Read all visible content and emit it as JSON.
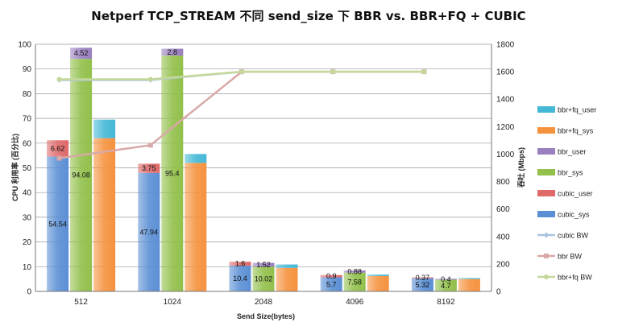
{
  "chart_data": {
    "type": "bar",
    "title": "Netperf TCP_STREAM 不同 send_size 下  BBR vs. BBR+FQ + CUBIC",
    "xlabel": "Send Size(bytes)",
    "ylabel": "CPU 利用率 (百分比)",
    "y2label": "吞吐 (Mbps)",
    "categories": [
      "512",
      "1024",
      "2048",
      "4096",
      "8192"
    ],
    "ylim": [
      0,
      100
    ],
    "yticks": [
      0,
      10,
      20,
      30,
      40,
      50,
      60,
      70,
      80,
      90,
      100
    ],
    "y2lim": [
      0,
      1800
    ],
    "y2ticks": [
      0,
      200,
      400,
      600,
      800,
      1000,
      1200,
      1400,
      1600,
      1800
    ],
    "colors": {
      "cubic_sys": "#5b8fd4",
      "cubic_user": "#e06a6a",
      "bbr_sys": "#92c04b",
      "bbr_user": "#9a80bf",
      "bbrfq_sys": "#f5923e",
      "bbrfq_user": "#45b8d6",
      "cubic_bw": "#a9c3e0",
      "bbr_bw": "#d9a8a8",
      "bbrfq_bw": "#c4d89a"
    },
    "groups": [
      {
        "name": "cubic",
        "sys": [
          54.54,
          47.94,
          10.4,
          5.7,
          5.32
        ],
        "user": [
          6.62,
          3.75,
          1.6,
          0.9,
          0.37
        ],
        "sys_labels": [
          "54.54",
          "47.94",
          "10.4",
          "5.7",
          "5.32"
        ],
        "user_labels": [
          "6.62",
          "3.75",
          "1.6",
          "0.9",
          "0.37"
        ]
      },
      {
        "name": "bbr",
        "sys": [
          94.08,
          95.4,
          10.02,
          7.58,
          4.7
        ],
        "user": [
          4.52,
          2.8,
          1.52,
          0.88,
          0.4
        ],
        "sys_labels": [
          "94.08",
          "95.4",
          "10.02",
          "7.58",
          "4.7"
        ],
        "user_labels": [
          "4.52",
          "2.8",
          "1.52",
          "0.88",
          "0.4"
        ]
      },
      {
        "name": "bbr+fq",
        "sys": [
          62,
          52,
          9.5,
          6.2,
          5.0
        ],
        "user": [
          7.5,
          3.6,
          1.4,
          0.6,
          0.4
        ]
      }
    ],
    "lines": [
      {
        "name": "cubic BW",
        "values": [
          1540,
          1540,
          1600,
          1600,
          1600
        ]
      },
      {
        "name": "bbr BW",
        "values": [
          970,
          1065,
          1600,
          1600,
          1600
        ]
      },
      {
        "name": "bbr+fq BW",
        "values": [
          1545,
          1545,
          1600,
          1600,
          1600
        ]
      }
    ],
    "legend": [
      "bbr+fq_user",
      "bbr+fq_sys",
      "bbr_user",
      "bbr_sys",
      "cubic_user",
      "cubic_sys",
      "cubic BW",
      "bbr BW",
      "bbr+fq BW"
    ]
  }
}
